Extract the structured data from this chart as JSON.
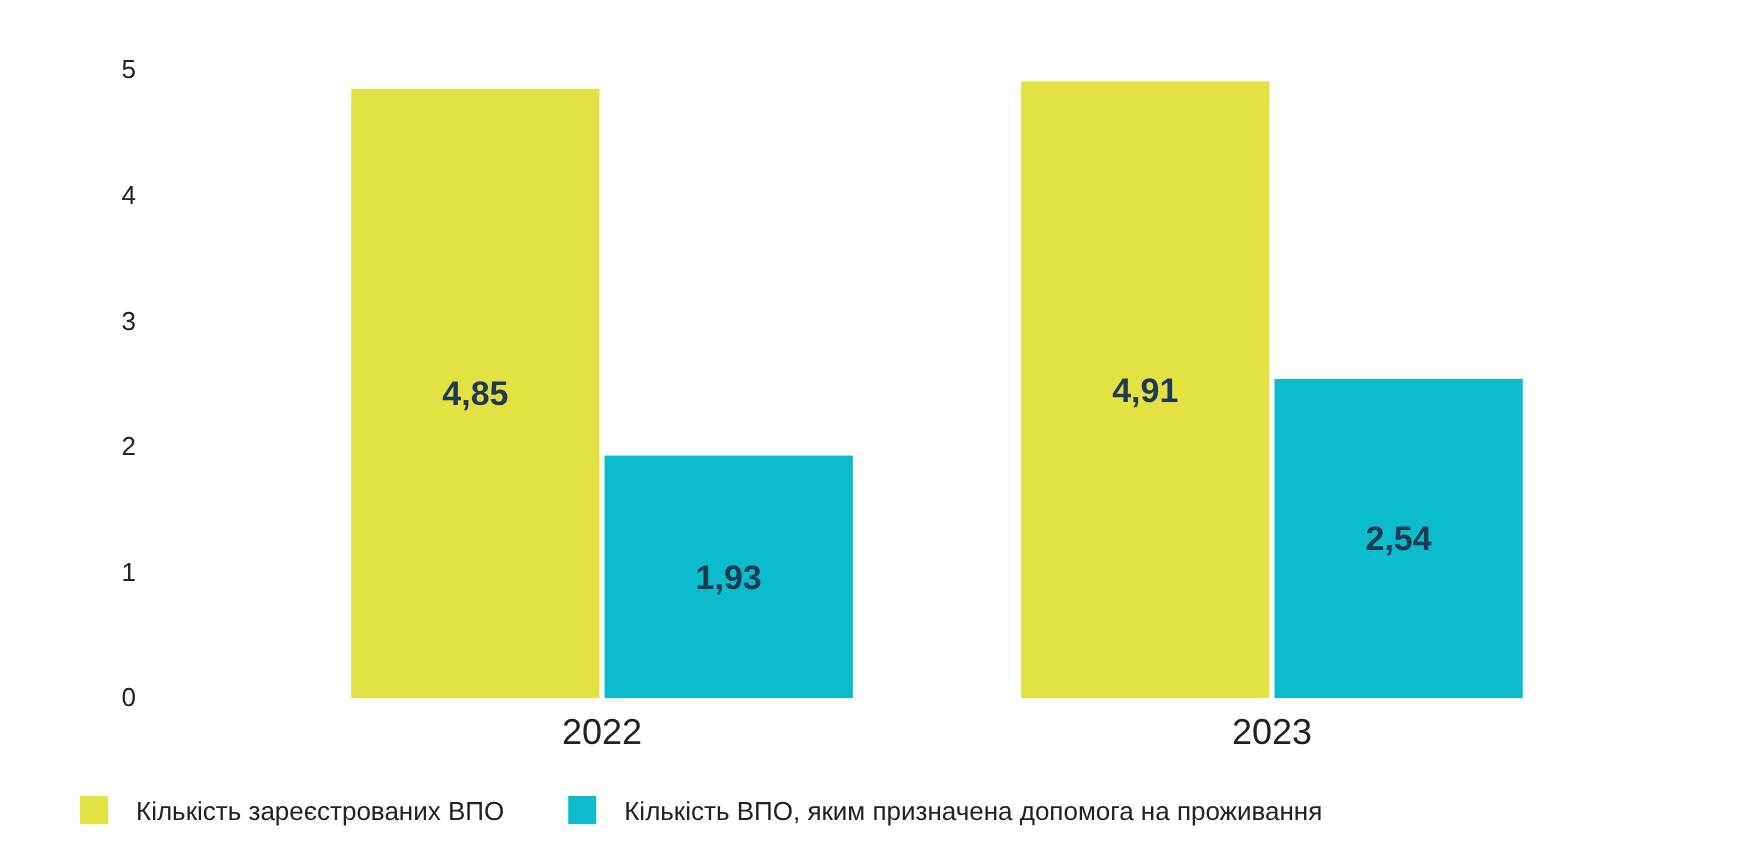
{
  "chart_data": {
    "type": "bar",
    "categories": [
      "2022",
      "2023"
    ],
    "series": [
      {
        "name": "Кількість зареєстрованих ВПО",
        "color": "#e3e242",
        "values": [
          4.85,
          4.91
        ],
        "value_labels": [
          "4,85",
          "4,91"
        ]
      },
      {
        "name": "Кількість ВПО, яким призначена допомога на проживання",
        "color": "#0bbccc",
        "values": [
          1.93,
          2.54
        ],
        "value_labels": [
          "1,93",
          "2,54"
        ]
      }
    ],
    "ylim": [
      0,
      5
    ],
    "yticks": [
      0,
      1,
      2,
      3,
      4,
      5
    ],
    "grid": false,
    "legend": "bottom left"
  }
}
